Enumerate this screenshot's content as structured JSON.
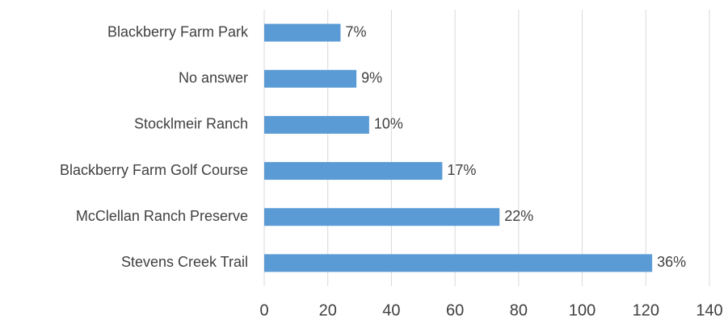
{
  "chart_data": {
    "type": "barh",
    "categories": [
      "Blackberry Farm Park",
      "No answer",
      "Stocklmeir Ranch",
      "Blackberry Farm Golf Course",
      "McClellan Ranch Preserve",
      "Stevens Creek Trail"
    ],
    "values": [
      24,
      29,
      33,
      56,
      74,
      122
    ],
    "percentages": [
      {
        "value": 7,
        "label": "7%"
      },
      {
        "value": 9,
        "label": "9%"
      },
      {
        "value": 10,
        "label": "10%"
      },
      {
        "value": 17,
        "label": "17%"
      },
      {
        "value": 22,
        "label": "22%"
      },
      {
        "value": 36,
        "label": "36%"
      }
    ],
    "color": "#5b9bd5",
    "xlim": [
      0,
      140
    ],
    "xticks": [
      0,
      20,
      40,
      60,
      80,
      100,
      120,
      140
    ],
    "grid": true
  }
}
